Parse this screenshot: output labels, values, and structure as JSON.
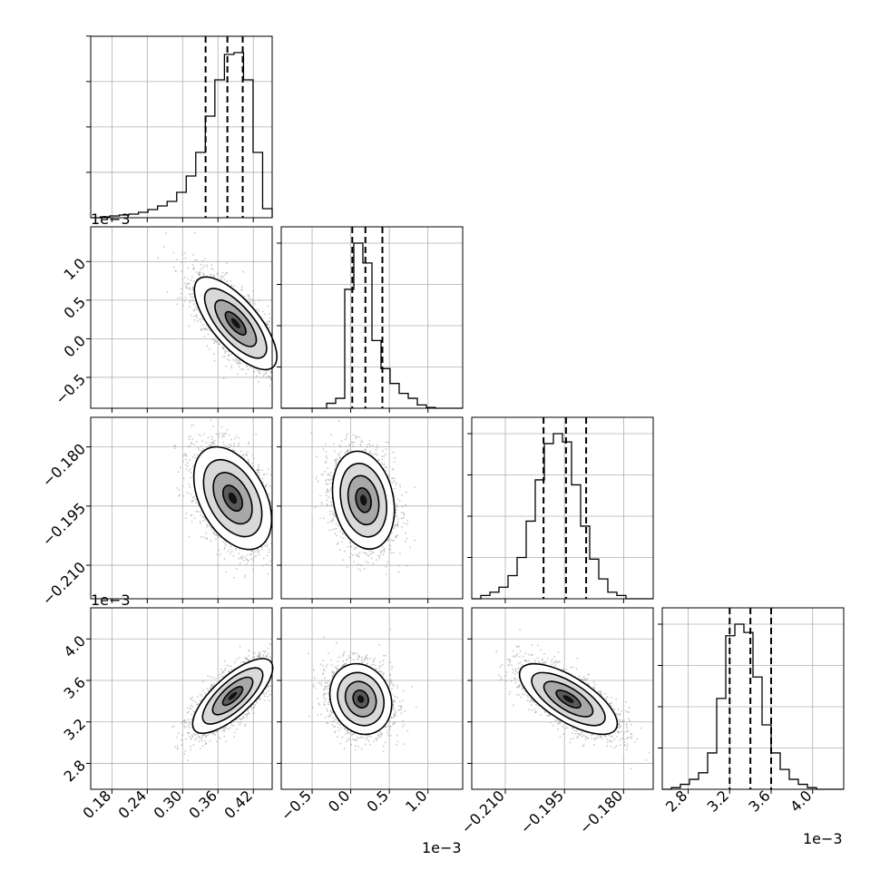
{
  "chart_data": {
    "type": "corner",
    "parameters": [
      {
        "range": [
          0.144,
          0.452
        ],
        "ticks": [
          0.18,
          0.24,
          0.3,
          0.36,
          0.42
        ],
        "tick_labels": [
          "0.18",
          "0.24",
          "0.30",
          "0.36",
          "0.42"
        ],
        "quantiles": [
          0.339,
          0.376,
          0.402
        ],
        "hist_max": 1.0,
        "hist_ticks": [
          0.25,
          0.5,
          0.75,
          1.0
        ],
        "hist": [
          0.0,
          0.005,
          0.01,
          0.015,
          0.02,
          0.03,
          0.045,
          0.065,
          0.09,
          0.14,
          0.23,
          0.36,
          0.56,
          0.76,
          0.9,
          0.91,
          0.76,
          0.36,
          0.05
        ],
        "hist_edges": [
          0.144,
          0.435,
          0.445,
          0.452
        ]
      },
      {
        "range": [
          -0.9,
          1.45
        ],
        "ticks": [
          -0.5,
          0.0,
          0.5,
          1.0
        ],
        "tick_labels": [
          "−0.5",
          "0.0",
          "0.5",
          "1.0"
        ],
        "quantiles": [
          0.02,
          0.19,
          0.41
        ],
        "offset_label": "1e−3",
        "hist_counts": [
          0,
          0,
          0,
          0,
          0,
          0.03,
          0.06,
          0.72,
          1.0,
          0.88,
          0.41,
          0.24,
          0.15,
          0.09,
          0.06,
          0.02,
          0.005,
          0,
          0,
          0
        ]
      },
      {
        "range": [
          -0.2185,
          -0.1725
        ],
        "ticks": [
          -0.21,
          -0.195,
          -0.18
        ],
        "tick_labels": [
          "−0.210",
          "−0.195",
          "−0.180"
        ],
        "quantiles": [
          -0.2003,
          -0.1946,
          -0.1895
        ],
        "hist_counts": [
          0,
          0.02,
          0.04,
          0.07,
          0.14,
          0.25,
          0.47,
          0.72,
          0.94,
          1.0,
          0.95,
          0.69,
          0.44,
          0.24,
          0.12,
          0.04,
          0.02,
          0,
          0,
          0
        ]
      },
      {
        "range": [
          2.55,
          4.3
        ],
        "ticks": [
          2.8,
          3.2,
          3.6,
          4.0
        ],
        "tick_labels": [
          "2.8",
          "3.2",
          "3.6",
          "4.0"
        ],
        "quantiles": [
          3.2,
          3.4,
          3.6
        ],
        "offset_label": "1e−3",
        "hist_counts": [
          0,
          0.01,
          0.03,
          0.06,
          0.1,
          0.22,
          0.55,
          0.93,
          1.0,
          0.95,
          0.68,
          0.39,
          0.22,
          0.12,
          0.06,
          0.03,
          0.01,
          0,
          0,
          0
        ]
      }
    ],
    "row_offset_labels": [
      "1e−3",
      "",
      "1e−3"
    ],
    "grid": true,
    "points_per_panel": 2500
  }
}
